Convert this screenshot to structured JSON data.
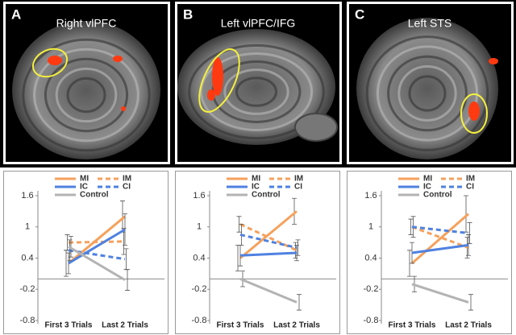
{
  "brain_panels": [
    {
      "letter": "A",
      "title": "Right vlPFC"
    },
    {
      "letter": "B",
      "title": "Left vlPFC/IFG"
    },
    {
      "letter": "C",
      "title": "Left STS"
    }
  ],
  "chart_data": [
    {
      "type": "line",
      "categories": [
        "First 3 Trials",
        "Last 2 Trials"
      ],
      "ylim": [
        -0.8,
        1.6
      ],
      "yticks": [
        -0.8,
        -0.2,
        0.4,
        1,
        1.6
      ],
      "series": [
        {
          "name": "MI",
          "color": "#f5a15c",
          "style": "solid",
          "values": [
            0.3,
            1.2
          ],
          "errors": [
            0.25,
            0.3
          ]
        },
        {
          "name": "IM",
          "color": "#f5a15c",
          "style": "dashed",
          "values": [
            0.7,
            0.72
          ],
          "errors": [
            0.15,
            0.25
          ]
        },
        {
          "name": "IC",
          "color": "#4f81e0",
          "style": "solid",
          "values": [
            0.3,
            0.95
          ],
          "errors": [
            0.2,
            0.3
          ]
        },
        {
          "name": "CI",
          "color": "#4f81e0",
          "style": "dashed",
          "values": [
            0.55,
            0.38
          ],
          "errors": [
            0.2,
            0.2
          ]
        },
        {
          "name": "Control",
          "color": "#b3b3b3",
          "style": "solid",
          "values": [
            0.62,
            -0.02
          ],
          "errors": [
            0.2,
            0.2
          ]
        }
      ]
    },
    {
      "type": "line",
      "categories": [
        "First 3 Trials",
        "Last 2 Trials"
      ],
      "ylim": [
        -0.8,
        1.6
      ],
      "yticks": [
        -0.8,
        -0.2,
        0.4,
        1,
        1.6
      ],
      "series": [
        {
          "name": "MI",
          "color": "#f5a15c",
          "style": "solid",
          "values": [
            0.4,
            1.3
          ],
          "errors": [
            0.25,
            0.25
          ]
        },
        {
          "name": "IM",
          "color": "#f5a15c",
          "style": "dashed",
          "values": [
            1.05,
            0.55
          ],
          "errors": [
            0.15,
            0.15
          ]
        },
        {
          "name": "IC",
          "color": "#4f81e0",
          "style": "solid",
          "values": [
            0.45,
            0.5
          ],
          "errors": [
            0.2,
            0.15
          ]
        },
        {
          "name": "CI",
          "color": "#4f81e0",
          "style": "dashed",
          "values": [
            0.85,
            0.6
          ],
          "errors": [
            0.2,
            0.15
          ]
        },
        {
          "name": "Control",
          "color": "#b3b3b3",
          "style": "solid",
          "values": [
            0.0,
            -0.45
          ],
          "errors": [
            0.15,
            0.15
          ]
        }
      ]
    },
    {
      "type": "line",
      "categories": [
        "First 3 Trials",
        "Last 2 Trials"
      ],
      "ylim": [
        -0.8,
        1.6
      ],
      "yticks": [
        -0.8,
        -0.2,
        0.4,
        1,
        1.6
      ],
      "series": [
        {
          "name": "MI",
          "color": "#f5a15c",
          "style": "solid",
          "values": [
            0.3,
            1.25
          ],
          "errors": [
            0.25,
            0.35
          ]
        },
        {
          "name": "IM",
          "color": "#f5a15c",
          "style": "dashed",
          "values": [
            1.0,
            0.6
          ],
          "errors": [
            0.15,
            0.2
          ]
        },
        {
          "name": "IC",
          "color": "#4f81e0",
          "style": "solid",
          "values": [
            0.5,
            0.65
          ],
          "errors": [
            0.2,
            0.2
          ]
        },
        {
          "name": "CI",
          "color": "#4f81e0",
          "style": "dashed",
          "values": [
            1.0,
            0.88
          ],
          "errors": [
            0.2,
            0.2
          ]
        },
        {
          "name": "Control",
          "color": "#b3b3b3",
          "style": "solid",
          "values": [
            -0.1,
            -0.45
          ],
          "errors": [
            0.15,
            0.15
          ]
        }
      ]
    }
  ]
}
